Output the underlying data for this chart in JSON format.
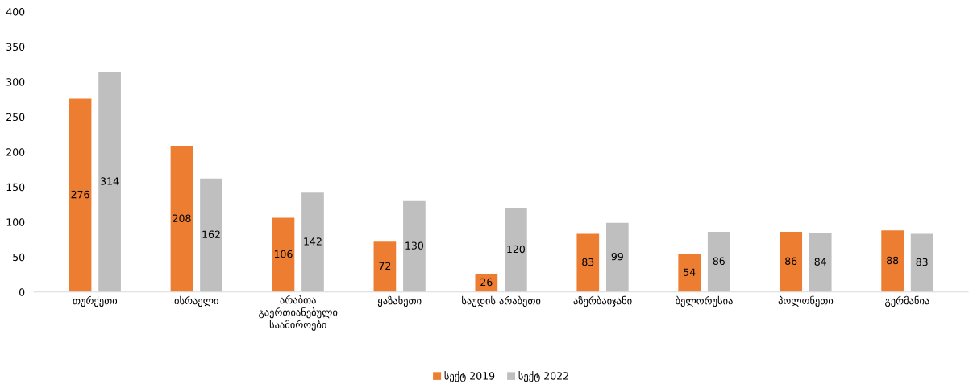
{
  "chart_data": {
    "type": "bar",
    "categories": [
      "თურქეთი",
      "ისრაელი",
      "არაბთა\nგაერთიანებული\nსაამიროები",
      "ყაზახეთი",
      "საუდის არაბეთი",
      "აზერბაიჯანი",
      "ბელორუსია",
      "პოლონეთი",
      "გერმანია"
    ],
    "series": [
      {
        "name": "სექტ 2019",
        "color": "#ed7d31",
        "values": [
          276,
          208,
          106,
          72,
          26,
          83,
          54,
          86,
          88
        ]
      },
      {
        "name": "სექტ 2022",
        "color": "#bfbfbf",
        "values": [
          314,
          162,
          142,
          130,
          120,
          99,
          86,
          84,
          83
        ]
      }
    ],
    "ylim": [
      0,
      400
    ],
    "yticks": [
      0,
      50,
      100,
      150,
      200,
      250,
      300,
      350,
      400
    ],
    "grid": false,
    "legend": "bottom",
    "data_labels": true
  }
}
